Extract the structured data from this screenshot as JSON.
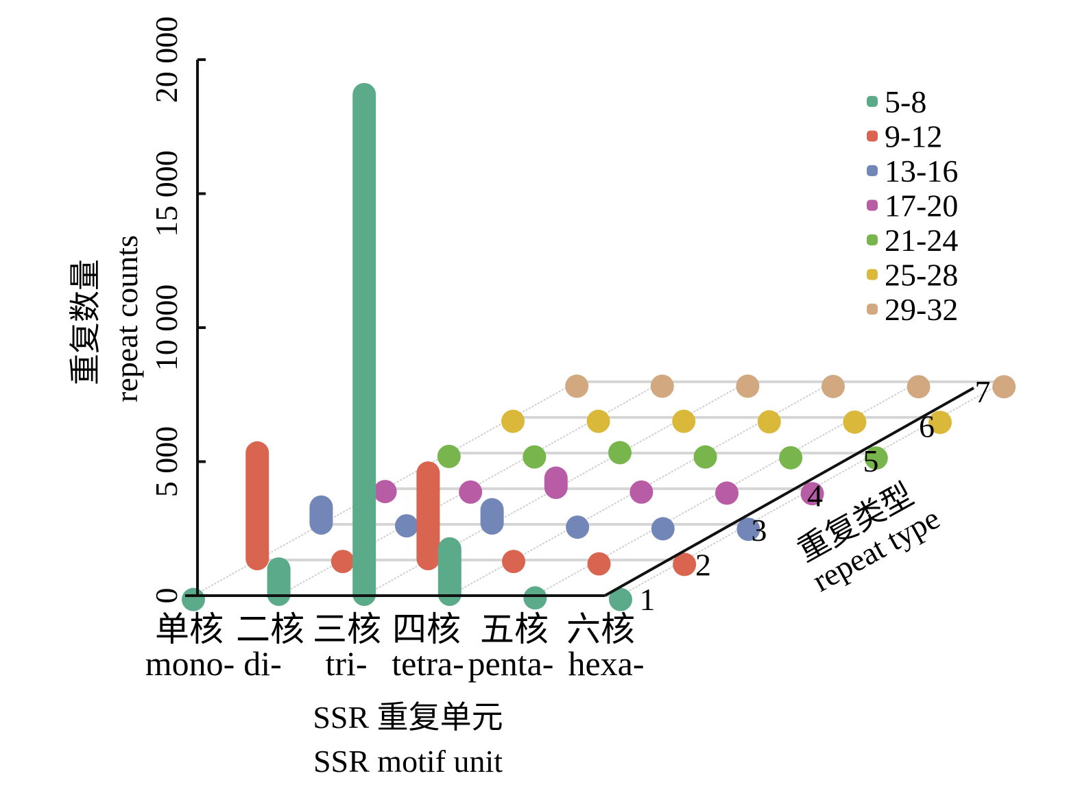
{
  "chart_data": {
    "type": "bar",
    "variant": "3d-lollipop",
    "title": "",
    "ylabel_cn": "重复数量",
    "ylabel_en": "repeat counts",
    "xlabel_cn": "SSR 重复单元",
    "xlabel_en": "SSR motif unit",
    "depth_label_cn": "重复类型",
    "depth_label_en": "repeat type",
    "ylim": [
      0,
      20000
    ],
    "yticks": [
      0,
      5000,
      10000,
      15000,
      20000
    ],
    "ytick_labels": [
      "0",
      "5 000",
      "10 000",
      "15 000",
      "20 000"
    ],
    "categories_cn": [
      "单核",
      "二核",
      "三核",
      "四核",
      "五核",
      "六核"
    ],
    "categories_en": [
      "mono-",
      "di-",
      "tri-",
      "tetra-",
      "penta-",
      "hexa-"
    ],
    "depth_ticks": [
      "1",
      "2",
      "3",
      "4",
      "5",
      "6",
      "7"
    ],
    "legend_position": "top-right",
    "grid": true,
    "series": [
      {
        "name": "5-8",
        "color": "#5BAA8A",
        "values": [
          60,
          1200,
          18900,
          1950,
          120,
          60
        ]
      },
      {
        "name": "9-12",
        "color": "#D9644F",
        "values": [
          4200,
          150,
          3450,
          150,
          60,
          40
        ]
      },
      {
        "name": "13-16",
        "color": "#7386B8",
        "values": [
          850,
          150,
          750,
          100,
          40,
          20
        ]
      },
      {
        "name": "17-20",
        "color": "#B85CA6",
        "values": [
          100,
          80,
          600,
          80,
          40,
          20
        ]
      },
      {
        "name": "21-24",
        "color": "#78B54C",
        "values": [
          80,
          60,
          220,
          60,
          30,
          20
        ]
      },
      {
        "name": "25-28",
        "color": "#D9B83A",
        "values": [
          60,
          60,
          60,
          40,
          30,
          20
        ]
      },
      {
        "name": "29-32",
        "color": "#D1A880",
        "values": [
          40,
          40,
          40,
          30,
          20,
          20
        ]
      }
    ]
  }
}
